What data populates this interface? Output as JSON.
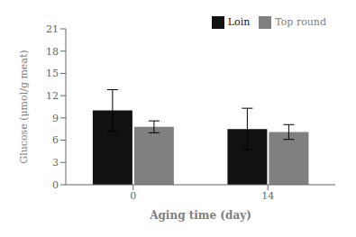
{
  "chart_data": {
    "type": "bar",
    "categories": [
      "0",
      "14"
    ],
    "series": [
      {
        "name": "Loin",
        "color": "#111111",
        "values": [
          10.0,
          7.5
        ],
        "errors": [
          2.8,
          2.8
        ]
      },
      {
        "name": "Top round",
        "color": "#808080",
        "values": [
          7.8,
          7.1
        ],
        "errors": [
          0.8,
          1.0
        ]
      }
    ],
    "xlabel": "Aging time (day)",
    "ylabel": "Glucose (μmol/g meat)",
    "ylim": [
      0,
      21
    ],
    "yticks": [
      0,
      3,
      6,
      9,
      12,
      15,
      18,
      21
    ],
    "legend": "upper right",
    "grid": false
  }
}
